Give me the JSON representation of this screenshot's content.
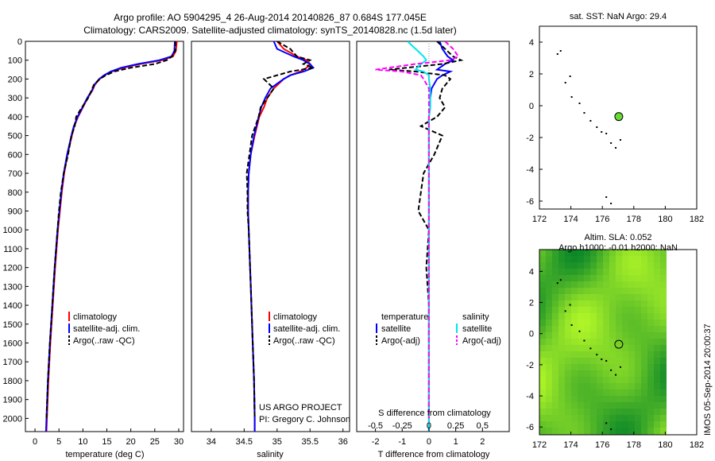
{
  "title_line1": "Argo profile: AO 5904295_4 26-Aug-2014 20140826_87 0.684S 177.045E",
  "title_line2": "Climatology: CARS2009. Satellite-adjusted climatology: synTS_20140828.nc (1.5d later)",
  "side_stamp": "IMOS 05-Sep-2014 20:00:37",
  "project_line1": "US ARGO PROJECT",
  "project_line2": "PI: Gregory C. Johnson",
  "colors": {
    "clim": "#ff0000",
    "sat": "#0000ff",
    "argo": "#000000",
    "sal_sat": "#00e5ee",
    "sal_argo": "#ff00ff",
    "dot": "#66dd33"
  },
  "chart_data": [
    {
      "id": "temp",
      "type": "line",
      "xlabel": "temperature (deg C)",
      "ylabel": "",
      "xlim": [
        -2,
        31
      ],
      "ylim": [
        2070,
        0
      ],
      "xticks": [
        0,
        5,
        10,
        15,
        20,
        25,
        30
      ],
      "yticks": [
        0,
        100,
        200,
        300,
        400,
        500,
        600,
        700,
        800,
        900,
        1000,
        1100,
        1200,
        1300,
        1400,
        1500,
        1600,
        1700,
        1800,
        1900,
        2000
      ],
      "depth": [
        0,
        50,
        80,
        100,
        120,
        140,
        160,
        180,
        200,
        230,
        260,
        300,
        350,
        400,
        450,
        500,
        600,
        700,
        800,
        900,
        1000,
        1200,
        1400,
        1600,
        1800,
        2000,
        2070
      ],
      "series": [
        {
          "name": "climatology",
          "key": "clim",
          "values": [
            29.6,
            29.4,
            28.8,
            26.5,
            22.0,
            18.5,
            16.0,
            14.5,
            13.5,
            12.5,
            12.0,
            11.0,
            10.0,
            9.0,
            8.2,
            7.7,
            6.8,
            6.1,
            5.6,
            5.2,
            4.8,
            4.2,
            3.7,
            3.2,
            2.8,
            2.5,
            2.4
          ]
        },
        {
          "name": "satellite-adj. clim.",
          "key": "sat",
          "values": [
            29.2,
            29.1,
            28.5,
            26.0,
            21.5,
            18.0,
            15.8,
            14.4,
            13.4,
            12.4,
            11.9,
            10.9,
            9.9,
            8.9,
            8.1,
            7.6,
            6.7,
            6.0,
            5.5,
            5.1,
            4.7,
            4.1,
            3.6,
            3.1,
            2.7,
            2.4,
            2.3
          ]
        },
        {
          "name": "Argo(..raw -QC)",
          "key": "argo",
          "values": [
            29.3,
            29.3,
            28.6,
            27.5,
            25.0,
            20.0,
            16.5,
            14.8,
            13.5,
            12.3,
            11.8,
            11.1,
            9.8,
            8.6,
            8.3,
            7.6,
            6.9,
            6.0,
            5.4,
            5.0,
            4.7,
            4.1,
            3.6,
            3.1,
            2.7,
            2.4,
            null
          ]
        }
      ],
      "legend": [
        "climatology",
        "satellite-adj. clim.",
        "Argo(..raw -QC)"
      ]
    },
    {
      "id": "sal",
      "type": "line",
      "xlabel": "salinity",
      "ylabel": "",
      "xlim": [
        33.7,
        36.1
      ],
      "ylim": [
        2070,
        0
      ],
      "xticks": [
        34,
        34.5,
        35,
        35.5,
        36
      ],
      "depth": [
        0,
        40,
        80,
        100,
        120,
        140,
        160,
        180,
        200,
        250,
        300,
        350,
        400,
        500,
        600,
        700,
        800,
        900,
        1000,
        1200,
        1400,
        1600,
        1800,
        2000,
        2070
      ],
      "series": [
        {
          "name": "climatology",
          "key": "clim",
          "values": [
            35.0,
            35.1,
            35.3,
            35.45,
            35.5,
            35.45,
            35.35,
            35.2,
            35.1,
            34.95,
            34.85,
            34.8,
            34.73,
            34.66,
            34.6,
            34.57,
            34.56,
            34.56,
            34.57,
            34.59,
            34.61,
            34.63,
            34.65,
            34.66,
            34.66
          ]
        },
        {
          "name": "satellite-adj. clim.",
          "key": "sat",
          "values": [
            34.95,
            35.0,
            35.25,
            35.4,
            35.5,
            35.55,
            35.4,
            35.2,
            35.1,
            34.9,
            34.82,
            34.76,
            34.72,
            34.65,
            34.6,
            34.57,
            34.56,
            34.56,
            34.57,
            34.59,
            34.61,
            34.63,
            34.65,
            34.66,
            34.66
          ]
        },
        {
          "name": "Argo(..raw -QC)",
          "key": "argo",
          "values": [
            35.0,
            35.2,
            35.3,
            35.5,
            35.4,
            35.55,
            35.2,
            35.0,
            34.8,
            34.95,
            34.85,
            34.75,
            34.72,
            34.62,
            34.58,
            34.54,
            34.55,
            34.55,
            34.57,
            34.59,
            34.61,
            34.63,
            34.65,
            34.66,
            null
          ]
        }
      ],
      "legend": [
        "climatology",
        "satellite-adj. clim.",
        "Argo(..raw -QC)"
      ]
    },
    {
      "id": "diff",
      "type": "line",
      "xlabel": "T difference from climatology",
      "xlabel_top": "S difference from climatology",
      "xlim": [
        -2.7,
        3
      ],
      "ylim": [
        2070,
        0
      ],
      "xticks": [
        -2,
        -1,
        0,
        1,
        2
      ],
      "xticks_top": [
        "-0.5",
        "-0.25",
        "0",
        "0.25",
        "0.5"
      ],
      "xticks_top_pos": [
        -2,
        -1,
        0,
        1,
        2
      ],
      "depth": [
        0,
        40,
        80,
        100,
        120,
        150,
        160,
        180,
        200,
        250,
        300,
        350,
        400,
        450,
        500,
        600,
        700,
        800,
        900,
        1000,
        1200,
        1400,
        1600,
        1800,
        2000,
        2070
      ],
      "series": [
        {
          "name": "temperature satellite",
          "key": "sat",
          "values": [
            0.4,
            0.5,
            0.7,
            0.9,
            0.6,
            0.3,
            0.8,
            0.5,
            0.3,
            0.1,
            0.05,
            0.05,
            0.0,
            0.0,
            0.0,
            0.0,
            0.0,
            0.0,
            0.0,
            0.0,
            0.0,
            0.0,
            0.0,
            0.0,
            0.0,
            0.0
          ]
        },
        {
          "name": "temperature Argo(-adj)",
          "key": "argo",
          "values": [
            0.3,
            0.6,
            0.9,
            1.2,
            0.5,
            -1.5,
            -0.5,
            0.6,
            0.8,
            0.5,
            0.4,
            0.6,
            0.3,
            -0.3,
            0.5,
            0.2,
            -0.2,
            -0.3,
            -0.4,
            0.0,
            -0.1,
            0.0,
            0.0,
            0.0,
            0.0,
            null
          ]
        },
        {
          "name": "salinity satellite",
          "key": "sal_sat",
          "values": [
            -0.8,
            -0.5,
            -0.2,
            -0.1,
            -0.3,
            -0.5,
            -0.2,
            0.0,
            0.0,
            0.05,
            0.05,
            0.05,
            0.0,
            0.0,
            0.0,
            0.0,
            0.0,
            0.0,
            0.0,
            0.0,
            0.0,
            0.0,
            0.0,
            0.0,
            0.0,
            0.0
          ]
        },
        {
          "name": "salinity Argo(-adj)",
          "key": "sal_argo",
          "values": [
            0.6,
            0.9,
            1.1,
            0.8,
            -0.5,
            -2.0,
            -1.0,
            -0.3,
            -0.2,
            0.0,
            0.0,
            0.0,
            0.0,
            0.0,
            0.0,
            0.0,
            0.0,
            0.0,
            0.0,
            0.0,
            0.0,
            0.0,
            0.0,
            0.0,
            0.0,
            null
          ]
        }
      ],
      "legend_temp_title": "temperature",
      "legend_sal_title": "salinity",
      "legend": [
        "satellite",
        "Argo(-adj)",
        "satellite",
        "Argo(-adj)"
      ]
    },
    {
      "id": "sst",
      "type": "scatter",
      "title": "sat. SST: NaN Argo: 29.4",
      "xlim": [
        172,
        182
      ],
      "ylim": [
        -6.5,
        5
      ],
      "xticks": [
        172,
        174,
        176,
        178,
        180,
        182
      ],
      "yticks": [
        4,
        2,
        0,
        -2,
        -4,
        -6
      ],
      "argo_position": {
        "lon": 177.045,
        "lat": -0.684
      },
      "coast": [
        [
          173.1,
          3.3
        ],
        [
          173.3,
          3.5
        ],
        [
          173.6,
          1.5
        ],
        [
          173.9,
          1.9
        ],
        [
          174,
          0.6
        ],
        [
          174.5,
          0.2
        ],
        [
          174.8,
          -0.4
        ],
        [
          175.2,
          -0.9
        ],
        [
          175.6,
          -1.3
        ],
        [
          175.9,
          -1.6
        ],
        [
          176.2,
          -1.7
        ],
        [
          176.5,
          -2.3
        ],
        [
          176.8,
          -2.6
        ],
        [
          177.1,
          -2.1
        ],
        [
          176.2,
          -5.7
        ],
        [
          176.5,
          -6.1
        ]
      ]
    },
    {
      "id": "sla",
      "type": "heatmap",
      "title_line1": "Altim. SLA: 0.052",
      "title_line2": "Argo h1000: -0.01 h2000: NaN",
      "xlim": [
        172,
        182
      ],
      "ylim": [
        -6.5,
        5.4
      ],
      "xticks": [
        172,
        174,
        176,
        178,
        180,
        182
      ],
      "yticks": [
        4,
        2,
        0,
        -2,
        -4,
        -6
      ],
      "argo_position": {
        "lon": 177.045,
        "lat": -0.684
      },
      "field_lon_range": [
        172,
        180
      ]
    }
  ]
}
